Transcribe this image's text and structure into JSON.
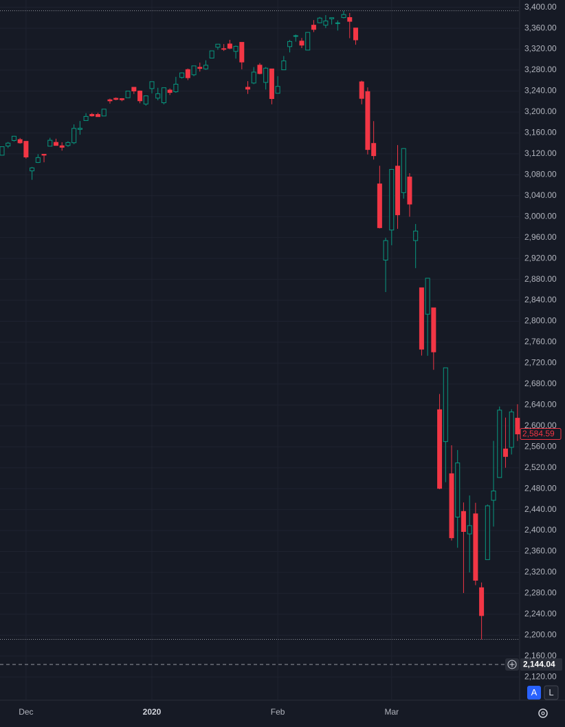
{
  "chart_data": {
    "type": "candlestick",
    "categories": [
      null,
      null,
      null,
      null,
      "Dec",
      null,
      null,
      null,
      null,
      null,
      null,
      null,
      null,
      null,
      null,
      null,
      null,
      null,
      null,
      null,
      null,
      null,
      null,
      null,
      null,
      "2020",
      null,
      null,
      null,
      null,
      null,
      null,
      null,
      null,
      null,
      null,
      null,
      null,
      null,
      null,
      null,
      null,
      null,
      null,
      null,
      null,
      "Feb",
      null,
      null,
      null,
      null,
      null,
      null,
      null,
      null,
      null,
      null,
      null,
      null,
      null,
      null,
      null,
      null,
      null,
      null,
      "Mar",
      null,
      null,
      null,
      null,
      null,
      null,
      null,
      null,
      null,
      null,
      null,
      null,
      null,
      null,
      null,
      null,
      null,
      null,
      null,
      null,
      null
    ],
    "open": [
      3117.4,
      3134.9,
      3145.5,
      3147.2,
      3143.9,
      3087.4,
      3103.5,
      3119.2,
      3134.6,
      3141.9,
      3135.4,
      3135.8,
      3141.2,
      3166.7,
      3183.6,
      3195.4,
      3195.2,
      3192.3,
      3223.3,
      3226.1,
      3225.5,
      3227.2,
      3247.2,
      3240.1,
      3215.2,
      3244.7,
      3226.4,
      3217.6,
      3241.9,
      3238.6,
      3266.0,
      3281.0,
      3271.1,
      3285.4,
      3282.3,
      3303.0,
      3323.7,
      3321.0,
      3330.0,
      3315.8,
      3333.1,
      3247.2,
      3255.3,
      3289.5,
      3256.5,
      3282.3,
      3235.7,
      3280.6,
      3324.9,
      3344.9,
      3335.5,
      3318.3,
      3365.9,
      3370.5,
      3365.9,
      3378.1,
      3369.0,
      3380.4,
      3380.5,
      3360.5,
      3257.6,
      3238.9,
      3139.9,
      3062.5,
      2916.9,
      2974.3,
      3096.5,
      3045.8,
      3075.7,
      2954.2,
      2863.9,
      2813.5,
      2825.6,
      2630.9,
      2570.0,
      2508.6,
      2425.7,
      2436.5,
      2393.5,
      2431.9,
      2290.7,
      2344.4,
      2457.8,
      2501.3,
      2555.9,
      2559.0,
      2614.7
    ],
    "high": [
      3133.8,
      3142.7,
      3154.3,
      3150.3,
      3144.3,
      3095.0,
      3119.4,
      3119.4,
      3150.6,
      3148.9,
      3142.1,
      3144.0,
      3176.3,
      3182.7,
      3197.7,
      3198.2,
      3198.5,
      3205.5,
      3225.6,
      3227.8,
      3226.4,
      3240.1,
      3247.9,
      3240.9,
      3231.7,
      3258.1,
      3246.2,
      3246.8,
      3244.9,
      3267.1,
      3275.6,
      3283.0,
      3288.1,
      3294.2,
      3298.7,
      3317.1,
      3329.9,
      3329.8,
      3337.8,
      3326.9,
      3333.2,
      3258.9,
      3285.8,
      3293.5,
      3285.9,
      3282.3,
      3268.4,
      3306.9,
      3337.6,
      3348.0,
      3341.4,
      3352.3,
      3375.6,
      3381.5,
      3385.1,
      3380.7,
      3375.0,
      3393.5,
      3389.2,
      3360.8,
      3259.8,
      3247.0,
      3182.5,
      3097.1,
      2959.7,
      3091.0,
      3136.7,
      3131.0,
      3083.0,
      2985.9,
      2863.9,
      2882.6,
      2825.6,
      2661.0,
      2711.3,
      2563.0,
      2553.9,
      2453.6,
      2467.0,
      2453.0,
      2300.7,
      2449.7,
      2571.4,
      2637.0,
      2615.9,
      2631.8,
      2641.4
    ],
    "low": [
      3117.4,
      3131.0,
      3143.4,
      3139.3,
      3110.8,
      3070.3,
      3102.5,
      3103.8,
      3134.6,
      3135.5,
      3126.1,
      3133.2,
      3138.5,
      3156.5,
      3183.6,
      3191.0,
      3191.1,
      3192.3,
      3216.0,
      3222.3,
      3220.5,
      3227.2,
      3234.4,
      3216.6,
      3212.0,
      3235.5,
      3222.3,
      3214.6,
      3232.4,
      3236.7,
      3263.7,
      3260.9,
      3268.4,
      3277.2,
      3280.7,
      3303.0,
      3318.9,
      3316.6,
      3320.0,
      3301.9,
      3281.5,
      3234.5,
      3253.2,
      3271.9,
      3242.8,
      3214.7,
      3235.7,
      3280.6,
      3313.8,
      3334.4,
      3322.1,
      3317.8,
      3352.7,
      3369.7,
      3360.5,
      3367.2,
      3355.6,
      3378.8,
      3341.0,
      3328.5,
      3214.7,
      3118.8,
      3109.0,
      2977.4,
      2855.8,
      2945.2,
      2976.6,
      3034.4,
      2999.8,
      2901.5,
      2734.4,
      2734.0,
      2707.2,
      2478.9,
      2492.4,
      2380.9,
      2367.0,
      2280.5,
      2319.8,
      2295.6,
      2191.9,
      2344.4,
      2407.5,
      2500.7,
      2520.0,
      2545.3,
      2571.2
    ],
    "close": [
      3133.6,
      3140.5,
      3153.6,
      3141.0,
      3113.9,
      3093.2,
      3112.8,
      3117.4,
      3145.9,
      3136.0,
      3132.5,
      3141.6,
      3168.6,
      3168.8,
      3191.5,
      3192.5,
      3191.1,
      3205.4,
      3221.2,
      3224.0,
      3223.4,
      3239.9,
      3240.0,
      3221.3,
      3230.8,
      3257.9,
      3234.9,
      3246.3,
      3237.2,
      3253.1,
      3274.7,
      3265.4,
      3288.1,
      3283.2,
      3289.3,
      3316.8,
      3329.6,
      3320.8,
      3321.8,
      3325.5,
      3295.5,
      3243.6,
      3276.2,
      3273.4,
      3283.7,
      3225.5,
      3248.9,
      3297.6,
      3334.7,
      3345.8,
      3327.7,
      3352.1,
      3357.8,
      3379.5,
      3373.9,
      3380.2,
      3370.3,
      3386.2,
      3373.2,
      3337.8,
      3225.9,
      3128.2,
      3116.4,
      2978.8,
      2954.2,
      3090.2,
      3003.4,
      3130.1,
      3023.9,
      2972.4,
      2746.6,
      2882.2,
      2741.4,
      2480.6,
      2711.0,
      2386.1,
      2529.2,
      2398.1,
      2409.4,
      2304.9,
      2237.4,
      2447.3,
      2475.6,
      2630.1,
      2541.5,
      2626.7,
      2584.59
    ],
    "up_color": "#089981",
    "down_color": "#f23645",
    "ylim": [
      2077,
      3414
    ],
    "yticks": [
      {
        "value": 2120,
        "label": "2,120.00"
      },
      {
        "value": 2160,
        "label": "2,160.00"
      },
      {
        "value": 2200,
        "label": "2,200.00"
      },
      {
        "value": 2240,
        "label": "2,240.00"
      },
      {
        "value": 2280,
        "label": "2,280.00"
      },
      {
        "value": 2320,
        "label": "2,320.00"
      },
      {
        "value": 2360,
        "label": "2,360.00"
      },
      {
        "value": 2400,
        "label": "2,400.00"
      },
      {
        "value": 2440,
        "label": "2,440.00"
      },
      {
        "value": 2480,
        "label": "2,480.00"
      },
      {
        "value": 2520,
        "label": "2,520.00"
      },
      {
        "value": 2560,
        "label": "2,560.00"
      },
      {
        "value": 2600,
        "label": "2,600.00"
      },
      {
        "value": 2640,
        "label": "2,640.00"
      },
      {
        "value": 2680,
        "label": "2,680.00"
      },
      {
        "value": 2720,
        "label": "2,720.00"
      },
      {
        "value": 2760,
        "label": "2,760.00"
      },
      {
        "value": 2800,
        "label": "2,800.00"
      },
      {
        "value": 2840,
        "label": "2,840.00"
      },
      {
        "value": 2880,
        "label": "2,880.00"
      },
      {
        "value": 2920,
        "label": "2,920.00"
      },
      {
        "value": 2960,
        "label": "2,960.00"
      },
      {
        "value": 3000,
        "label": "3,000.00"
      },
      {
        "value": 3040,
        "label": "3,040.00"
      },
      {
        "value": 3080,
        "label": "3,080.00"
      },
      {
        "value": 3120,
        "label": "3,120.00"
      },
      {
        "value": 3160,
        "label": "3,160.00"
      },
      {
        "value": 3200,
        "label": "3,200.00"
      },
      {
        "value": 3240,
        "label": "3,240.00"
      },
      {
        "value": 3280,
        "label": "3,280.00"
      },
      {
        "value": 3320,
        "label": "3,320.00"
      },
      {
        "value": 3360,
        "label": "3,360.00"
      },
      {
        "value": 3400,
        "label": "3,400.00"
      }
    ],
    "grid": true,
    "last_price": {
      "value": 2584.59,
      "label": "2,584.59"
    },
    "crosshair_price": {
      "value": 2144.04,
      "label": "2,144.04"
    }
  },
  "toolbar": {
    "auto": "A",
    "log": "L"
  }
}
